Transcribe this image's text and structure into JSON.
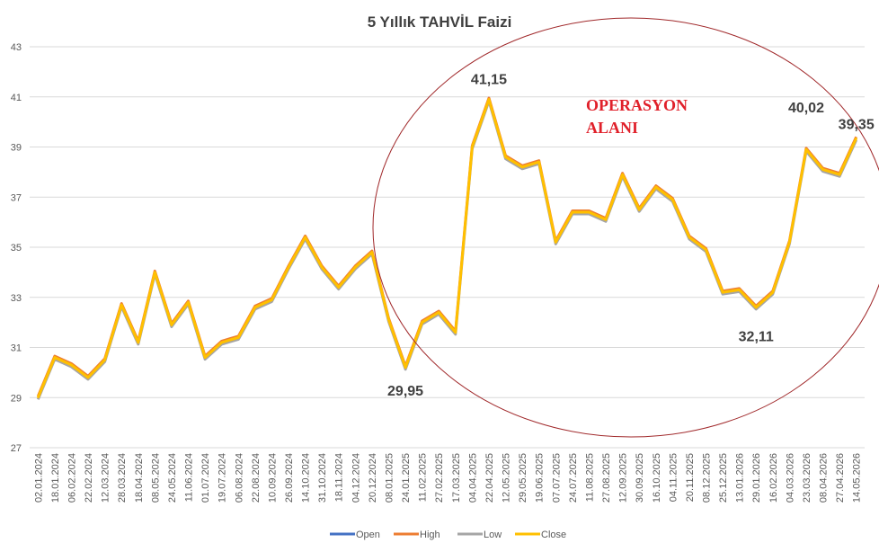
{
  "chart_data": {
    "type": "line",
    "title": "5 Yıllık TAHVİL Faizi",
    "ylim": [
      27,
      43
    ],
    "yticks": [
      27,
      29,
      31,
      33,
      35,
      37,
      39,
      41,
      43
    ],
    "grid": true,
    "legend_position": "bottom",
    "categories": [
      "02.01.2024",
      "18.01.2024",
      "06.02.2024",
      "22.02.2024",
      "12.03.2024",
      "28.03.2024",
      "18.04.2024",
      "08.05.2024",
      "24.05.2024",
      "11.06.2024",
      "01.07.2024",
      "19.07.2024",
      "06.08.2024",
      "22.08.2024",
      "10.09.2024",
      "26.09.2024",
      "14.10.2024",
      "31.10.2024",
      "18.11.2024",
      "04.12.2024",
      "20.12.2024",
      "08.01.2025",
      "24.01.2025",
      "11.02.2025",
      "27.02.2025",
      "17.03.2025",
      "04.04.2025",
      "22.04.2025",
      "12.05.2025",
      "29.05.2025",
      "19.06.2025",
      "07.07.2025",
      "24.07.2025",
      "11.08.2025",
      "27.08.2025",
      "12.09.2025",
      "30.09.2025",
      "16.10.2025",
      "04.11.2025",
      "20.11.2025",
      "08.12.2025",
      "25.12.2025",
      "13.01.2026",
      "29.01.2026",
      "16.02.2026",
      "04.03.2026",
      "23.03.2026",
      "08.04.2026",
      "27.04.2026",
      "14.05.2026"
    ],
    "series": [
      {
        "name": "Open",
        "color": "#4472c4"
      },
      {
        "name": "High",
        "color": "#ed7d31"
      },
      {
        "name": "Low",
        "color": "#a5a5a5"
      },
      {
        "name": "Close",
        "color": "#ffc000",
        "values": [
          29.0,
          30.6,
          30.3,
          29.8,
          30.5,
          32.7,
          31.2,
          34.0,
          31.9,
          32.8,
          30.6,
          31.2,
          31.4,
          32.6,
          32.9,
          34.2,
          35.4,
          34.2,
          33.4,
          34.2,
          34.8,
          32.1,
          30.2,
          32.0,
          32.4,
          31.6,
          39.0,
          40.9,
          38.6,
          38.2,
          38.4,
          35.2,
          36.4,
          36.4,
          36.1,
          37.9,
          36.5,
          37.4,
          36.9,
          35.4,
          34.9,
          33.2,
          33.3,
          32.6,
          33.2,
          35.2,
          38.9,
          38.1,
          37.9,
          39.35
        ]
      }
    ],
    "annotations": [
      {
        "text": "41,15",
        "x": "22.04.2025",
        "y": 41.15
      },
      {
        "text": "29,95",
        "x": "24.01.2025",
        "y": 29.95
      },
      {
        "text": "40,02",
        "x": "23.03.2026",
        "y": 40.02
      },
      {
        "text": "32,11",
        "x": "29.01.2026",
        "y": 32.11
      },
      {
        "text": "39,35",
        "x": "14.05.2026",
        "y": 39.35
      }
    ],
    "region_note": [
      "OPERASYON",
      "ALANI"
    ]
  }
}
